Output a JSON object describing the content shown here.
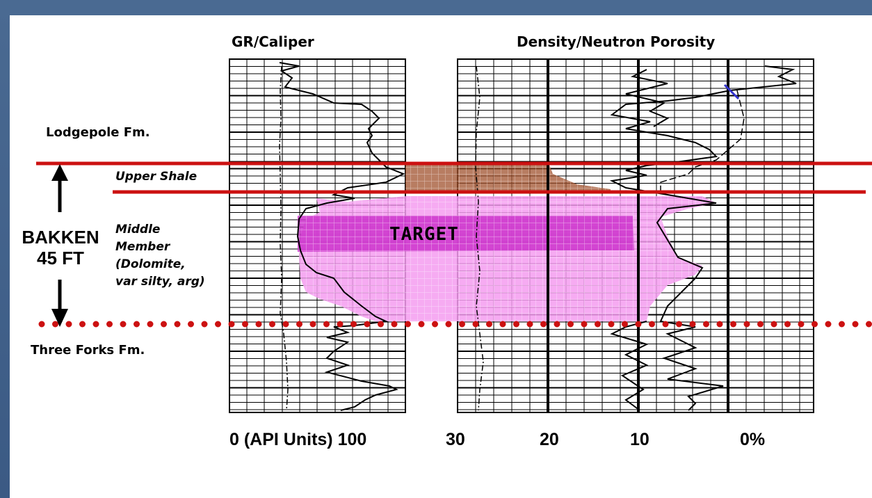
{
  "tracks": {
    "gr_title": "GR/Caliper",
    "dn_title": "Density/Neutron  Porosity"
  },
  "formations": {
    "lodgepole": "Lodgepole Fm.",
    "upper_shale": "Upper Shale",
    "middle_member": [
      "Middle",
      "Member",
      "(Dolomite,",
      "var silty, arg)"
    ],
    "three_forks": "Three Forks Fm.",
    "bakken": "BAKKEN",
    "thickness": "45 FT",
    "target": "TARGET"
  },
  "scales": {
    "gr": "0 (API Units)  100",
    "dn_30": "30",
    "dn_20": "20",
    "dn_10": "10",
    "dn_0": "0%"
  },
  "colors": {
    "boundary_line": "#cc1111",
    "dotted_line": "#cc1111",
    "upper_shale_fill": "#a0522d",
    "target_fill": "#cc33cc",
    "middle_member_fill": "#f59cf0",
    "frame_background": "#3d5a80"
  }
}
